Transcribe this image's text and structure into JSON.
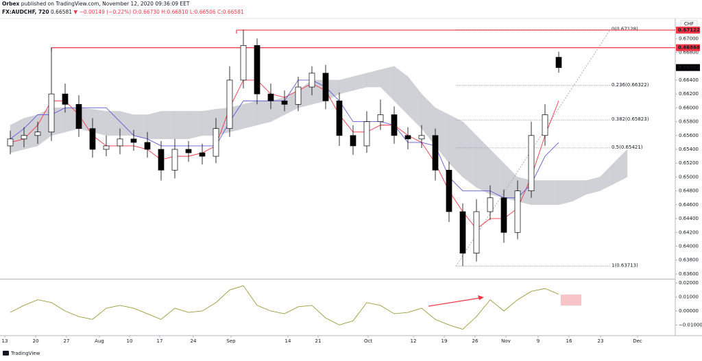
{
  "header": {
    "publisher": "Orbex",
    "published": "published on TradingView.com, November 12, 2020 09:36:09 EET",
    "symbol": "FX:AUDCHF, 720",
    "price": "0.66581",
    "change": "▼ −0.00149 (−0.22%)",
    "ohlc": "O:0.66730 H:0.66810 L:0.66506 C:0.66581"
  },
  "footer": {
    "logo": "TradingView"
  },
  "chart_data": {
    "type": "candlestick",
    "currency": "CHF",
    "xlim": [
      -0.75,
      48.5
    ],
    "ylim": [
      0.6355,
      0.6726
    ],
    "xticks": [
      {
        "value": -0.4,
        "label": "13"
      },
      {
        "value": 1.85,
        "label": "20"
      },
      {
        "value": 4.1,
        "label": "27"
      },
      {
        "value": 6.5,
        "label": "Aug"
      },
      {
        "value": 8.7,
        "label": "10"
      },
      {
        "value": 10.9,
        "label": "17"
      },
      {
        "value": 13.35,
        "label": "24"
      },
      {
        "value": 16.1,
        "label": "Sep"
      },
      {
        "value": 20.25,
        "label": "14"
      },
      {
        "value": 22.45,
        "label": "21"
      },
      {
        "value": 26.1,
        "label": "Oct"
      },
      {
        "value": 29.4,
        "label": "12"
      },
      {
        "value": 31.65,
        "label": "19"
      },
      {
        "value": 33.9,
        "label": "26"
      },
      {
        "value": 36.15,
        "label": "Nov"
      },
      {
        "value": 38.5,
        "label": "9"
      },
      {
        "value": 40.75,
        "label": "16"
      },
      {
        "value": 43.05,
        "label": "23"
      },
      {
        "value": 45.75,
        "label": "Dec"
      }
    ],
    "yticks": [
      {
        "value": 0.636,
        "label": "0.63600"
      },
      {
        "value": 0.638,
        "label": "0.63800"
      },
      {
        "value": 0.64,
        "label": "0.64000"
      },
      {
        "value": 0.642,
        "label": "0.64200"
      },
      {
        "value": 0.644,
        "label": "0.64400"
      },
      {
        "value": 0.646,
        "label": "0.64600"
      },
      {
        "value": 0.648,
        "label": "0.64800"
      },
      {
        "value": 0.65,
        "label": "0.65000"
      },
      {
        "value": 0.652,
        "label": "0.65200"
      },
      {
        "value": 0.654,
        "label": "0.65400"
      },
      {
        "value": 0.656,
        "label": "0.65600"
      },
      {
        "value": 0.658,
        "label": "0.65800"
      },
      {
        "value": 0.66,
        "label": "0.66000"
      },
      {
        "value": 0.662,
        "label": "0.66200"
      },
      {
        "value": 0.664,
        "label": "0.66400"
      },
      {
        "value": 0.668,
        "label": "0.66800"
      },
      {
        "value": 0.67,
        "label": "0.67000"
      }
    ],
    "up_color": "#ffffff",
    "down_color": "#000000",
    "open": [
      0.6545,
      0.6555,
      0.656,
      0.6565,
      0.662,
      0.6605,
      0.657,
      0.654,
      0.6545,
      0.6555,
      0.655,
      0.654,
      0.651,
      0.654,
      0.6535,
      0.653,
      0.657,
      0.664,
      0.669,
      0.662,
      0.661,
      0.6605,
      0.663,
      0.665,
      0.661,
      0.656,
      0.6545,
      0.658,
      0.659,
      0.656,
      0.6555,
      0.656,
      0.651,
      0.645,
      0.639,
      0.645,
      0.647,
      0.642,
      0.648,
      0.656,
      0.6673
    ],
    "high": [
      0.6567,
      0.6572,
      0.658,
      0.6687,
      0.6635,
      0.6618,
      0.6585,
      0.656,
      0.657,
      0.6568,
      0.6565,
      0.6552,
      0.6555,
      0.6552,
      0.6548,
      0.6585,
      0.666,
      0.67128,
      0.67,
      0.6635,
      0.6625,
      0.6645,
      0.666,
      0.6662,
      0.6622,
      0.6575,
      0.6595,
      0.6612,
      0.6602,
      0.6572,
      0.6575,
      0.657,
      0.6522,
      0.6462,
      0.6468,
      0.6488,
      0.6482,
      0.6495,
      0.658,
      0.6605,
      0.6681
    ],
    "low": [
      0.6533,
      0.6543,
      0.6548,
      0.6552,
      0.6593,
      0.6558,
      0.6528,
      0.653,
      0.6533,
      0.6538,
      0.6528,
      0.6495,
      0.6498,
      0.6522,
      0.6518,
      0.652,
      0.6558,
      0.6628,
      0.6605,
      0.6598,
      0.6595,
      0.6595,
      0.6618,
      0.6598,
      0.6545,
      0.6532,
      0.6535,
      0.6568,
      0.6548,
      0.654,
      0.6542,
      0.6495,
      0.6435,
      0.63713,
      0.6378,
      0.6438,
      0.6405,
      0.641,
      0.647,
      0.6545,
      0.66506
    ],
    "close": [
      0.6555,
      0.656,
      0.6565,
      0.662,
      0.6605,
      0.657,
      0.654,
      0.6545,
      0.6555,
      0.655,
      0.654,
      0.651,
      0.654,
      0.6535,
      0.653,
      0.657,
      0.664,
      0.669,
      0.662,
      0.661,
      0.6605,
      0.663,
      0.665,
      0.661,
      0.656,
      0.6545,
      0.658,
      0.659,
      0.656,
      0.6555,
      0.656,
      0.651,
      0.645,
      0.639,
      0.645,
      0.647,
      0.642,
      0.648,
      0.656,
      0.659,
      0.6658
    ],
    "lines": [
      {
        "color": "#f23645",
        "values": [
          0.655,
          0.6555,
          0.6575,
          0.661,
          0.661,
          0.659,
          0.656,
          0.6545,
          0.6545,
          0.6545,
          0.654,
          0.6525,
          0.653,
          0.653,
          0.6535,
          0.6545,
          0.66,
          0.664,
          0.664,
          0.662,
          0.6615,
          0.6625,
          0.6635,
          0.6625,
          0.659,
          0.6565,
          0.6565,
          0.6575,
          0.6575,
          0.656,
          0.655,
          0.652,
          0.648,
          0.645,
          0.6425,
          0.644,
          0.644,
          0.6455,
          0.65,
          0.656,
          0.661
        ]
      },
      {
        "color": "#5b5bd6",
        "values": [
          0.6555,
          0.657,
          0.659,
          0.659,
          0.66,
          0.66,
          0.66,
          0.66,
          0.658,
          0.656,
          0.6555,
          0.6545,
          0.6545,
          0.6545,
          0.6545,
          0.6545,
          0.658,
          0.661,
          0.661,
          0.661,
          0.661,
          0.664,
          0.664,
          0.663,
          0.661,
          0.658,
          0.658,
          0.658,
          0.6575,
          0.655,
          0.655,
          0.6545,
          0.65,
          0.648,
          0.648,
          0.648,
          0.647,
          0.647,
          0.649,
          0.653,
          0.655
        ]
      }
    ],
    "cloud": {
      "color": "#c8c9cf",
      "upper": [
        0.6575,
        0.6585,
        0.659,
        0.66,
        0.66,
        0.66,
        0.6598,
        0.6595,
        0.6595,
        0.659,
        0.659,
        0.6595,
        0.6595,
        0.6595,
        0.6595,
        0.6598,
        0.66,
        0.6605,
        0.661,
        0.661,
        0.6615,
        0.6625,
        0.664,
        0.664,
        0.664,
        0.6645,
        0.665,
        0.6655,
        0.666,
        0.6645,
        0.662,
        0.66,
        0.659,
        0.658,
        0.656,
        0.654,
        0.652,
        0.65,
        0.6495,
        0.6495,
        0.6495,
        0.6495,
        0.6495,
        0.65,
        0.652,
        0.654
      ],
      "lower": [
        0.6535,
        0.654,
        0.6545,
        0.656,
        0.6565,
        0.657,
        0.6565,
        0.656,
        0.656,
        0.656,
        0.6555,
        0.6555,
        0.6555,
        0.6555,
        0.656,
        0.656,
        0.6565,
        0.657,
        0.6575,
        0.658,
        0.659,
        0.66,
        0.6605,
        0.661,
        0.662,
        0.6625,
        0.663,
        0.663,
        0.661,
        0.659,
        0.657,
        0.6545,
        0.652,
        0.65,
        0.6485,
        0.6475,
        0.647,
        0.6465,
        0.646,
        0.646,
        0.646,
        0.6465,
        0.6475,
        0.648,
        0.649,
        0.65
      ]
    },
    "price_lines": [
      {
        "value": 0.67122,
        "label": "0.67122",
        "x_start": 16.5,
        "color": "#f23645"
      },
      {
        "value": 0.66868,
        "label": "0.66868",
        "x_start": 3,
        "color": "#f23645"
      }
    ],
    "last_price": {
      "value": 0.66581,
      "label": "0.66581",
      "color": "#000000"
    },
    "fib": {
      "x_range": [
        32.5,
        43.75
      ],
      "color": "#9598a1",
      "levels": [
        {
          "value": 0.67128,
          "label": "0(0.67128)"
        },
        {
          "value": 0.66322,
          "label": "0.236(0.66322)"
        },
        {
          "value": 0.65823,
          "label": "0.382(0.65823)"
        },
        {
          "value": 0.65421,
          "label": "0.5(0.65421)"
        },
        {
          "value": 0.63713,
          "label": "1(0.63713)"
        }
      ]
    },
    "osc": {
      "color": "#9a9a3a",
      "ylim": [
        -0.0176,
        0.0215
      ],
      "yticks": [
        {
          "value": 0.02,
          "label": "0.02000"
        },
        {
          "value": 0.01,
          "label": "0.01000"
        },
        {
          "value": 0,
          "label": "0.00000"
        },
        {
          "value": -0.01,
          "label": "−0.01000"
        }
      ],
      "values": [
        -0.001,
        0.004,
        0.008,
        0.006,
        0.0,
        -0.004,
        -0.006,
        0.002,
        0.004,
        0.002,
        -0.002,
        -0.006,
        0.002,
        -0.001,
        0.0,
        0.006,
        0.015,
        0.018,
        0.004,
        0.0,
        -0.002,
        0.003,
        0.004,
        -0.005,
        -0.01,
        -0.007,
        0.006,
        0.004,
        -0.002,
        -0.001,
        0.002,
        -0.006,
        -0.01,
        -0.013,
        -0.004,
        0.008,
        0.0,
        0.008,
        0.014,
        0.016,
        0.012
      ]
    }
  }
}
